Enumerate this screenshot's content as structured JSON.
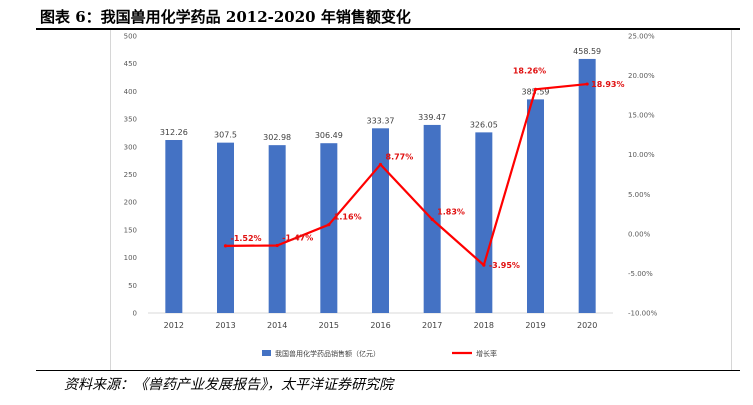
{
  "figure_title": "图表 6：我国兽用化学药品 2012-2020 年销售额变化",
  "source_note": "资料来源：《兽药产业发展报告》，太平洋证券研究院",
  "chart_data": {
    "type": "bar",
    "title": "",
    "categories": [
      "2012",
      "2013",
      "2014",
      "2015",
      "2016",
      "2017",
      "2018",
      "2019",
      "2020"
    ],
    "series": [
      {
        "name": "我国兽用化学药品销售额（亿元）",
        "type": "bar",
        "axis": "left",
        "color": "#4472c4",
        "values": [
          312.26,
          307.5,
          302.98,
          306.49,
          333.37,
          339.47,
          326.05,
          385.59,
          458.59
        ],
        "labels": [
          "312.26",
          "307.5",
          "302.98",
          "306.49",
          "333.37",
          "339.47",
          "326.05",
          "385.59",
          "458.59"
        ]
      },
      {
        "name": "增长率",
        "type": "line",
        "axis": "right",
        "color": "#ff0000",
        "values": [
          null,
          -1.52,
          -1.47,
          1.16,
          8.77,
          1.83,
          -3.95,
          18.26,
          18.93
        ],
        "labels": [
          "",
          "-1.52%",
          "-1.47%",
          "1.16%",
          "8.77%",
          "1.83%",
          "-3.95%",
          "18.26%",
          "18.93%"
        ]
      }
    ],
    "y_left": {
      "min": 0,
      "max": 500,
      "step": 50,
      "ticks": [
        "0",
        "50",
        "100",
        "150",
        "200",
        "250",
        "300",
        "350",
        "400",
        "450",
        "500"
      ]
    },
    "y_right": {
      "min": -10,
      "max": 25,
      "step": 5,
      "ticks": [
        "-10.00%",
        "-5.00%",
        "0.00%",
        "5.00%",
        "10.00%",
        "15.00%",
        "20.00%",
        "25.00%"
      ]
    },
    "grid": false,
    "legend": "bottom"
  }
}
